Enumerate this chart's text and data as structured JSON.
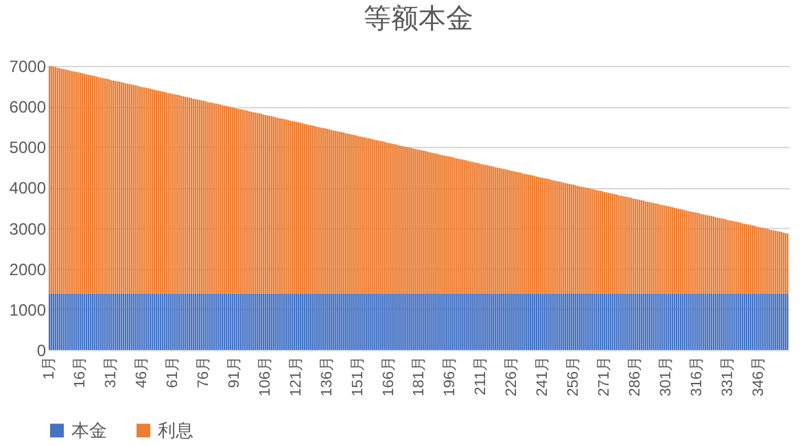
{
  "chart_data": {
    "type": "bar",
    "title": "等额本金",
    "stacked": true,
    "legend": "bottom",
    "grid": "y",
    "ylim": [
      0,
      7000
    ],
    "yticks": [
      0,
      1000,
      2000,
      3000,
      4000,
      5000,
      6000,
      7000
    ],
    "categories": [
      "1月",
      null,
      null,
      null,
      null,
      null,
      null,
      null,
      null,
      null,
      null,
      null,
      null,
      null,
      null,
      "16月",
      null,
      null,
      null,
      null,
      null,
      null,
      null,
      null,
      null,
      null,
      null,
      null,
      null,
      null,
      "31月",
      null,
      null,
      null,
      null,
      null,
      null,
      null,
      null,
      null,
      null,
      null,
      null,
      null,
      null,
      "46月",
      null,
      null,
      null,
      null,
      null,
      null,
      null,
      null,
      null,
      null,
      null,
      null,
      null,
      null,
      "61月",
      null,
      null,
      null,
      null,
      null,
      null,
      null,
      null,
      null,
      null,
      null,
      null,
      null,
      null,
      "76月",
      null,
      null,
      null,
      null,
      null,
      null,
      null,
      null,
      null,
      null,
      null,
      null,
      null,
      null,
      "91月",
      null,
      null,
      null,
      null,
      null,
      null,
      null,
      null,
      null,
      null,
      null,
      null,
      null,
      null,
      "106月",
      null,
      null,
      null,
      null,
      null,
      null,
      null,
      null,
      null,
      null,
      null,
      null,
      null,
      null,
      "121月",
      null,
      null,
      null,
      null,
      null,
      null,
      null,
      null,
      null,
      null,
      null,
      null,
      null,
      null,
      "136月",
      null,
      null,
      null,
      null,
      null,
      null,
      null,
      null,
      null,
      null,
      null,
      null,
      null,
      null,
      "151月",
      null,
      null,
      null,
      null,
      null,
      null,
      null,
      null,
      null,
      null,
      null,
      null,
      null,
      null,
      "166月",
      null,
      null,
      null,
      null,
      null,
      null,
      null,
      null,
      null,
      null,
      null,
      null,
      null,
      null,
      "181月",
      null,
      null,
      null,
      null,
      null,
      null,
      null,
      null,
      null,
      null,
      null,
      null,
      null,
      null,
      "196月",
      null,
      null,
      null,
      null,
      null,
      null,
      null,
      null,
      null,
      null,
      null,
      null,
      null,
      null,
      "211月",
      null,
      null,
      null,
      null,
      null,
      null,
      null,
      null,
      null,
      null,
      null,
      null,
      null,
      null,
      "226月",
      null,
      null,
      null,
      null,
      null,
      null,
      null,
      null,
      null,
      null,
      null,
      null,
      null,
      null,
      "241月",
      null,
      null,
      null,
      null,
      null,
      null,
      null,
      null,
      null,
      null,
      null,
      null,
      null,
      null,
      "256月",
      null,
      null,
      null,
      null,
      null,
      null,
      null,
      null,
      null,
      null,
      null,
      null,
      null,
      null,
      "271月",
      null,
      null,
      null,
      null,
      null,
      null,
      null,
      null,
      null,
      null,
      null,
      null,
      null,
      null,
      "286月",
      null,
      null,
      null,
      null,
      null,
      null,
      null,
      null,
      null,
      null,
      null,
      null,
      null,
      null,
      "301月",
      null,
      null,
      null,
      null,
      null,
      null,
      null,
      null,
      null,
      null,
      null,
      null,
      null,
      null,
      "316月",
      null,
      null,
      null,
      null,
      null,
      null,
      null,
      null,
      null,
      null,
      null,
      null,
      null,
      null,
      "331月",
      null,
      null,
      null,
      null,
      null,
      null,
      null,
      null,
      null,
      null,
      null,
      null,
      null,
      null,
      "346月",
      null,
      null,
      null,
      null,
      null,
      null,
      null,
      null,
      null,
      null,
      null,
      null,
      null,
      null
    ],
    "series": [
      {
        "name": "本金",
        "color": "#4472c4",
        "values": [
          1390,
          1390,
          1390,
          1390,
          1390,
          1390,
          1390,
          1390,
          1390,
          1390,
          1390,
          1390,
          1390,
          1390,
          1390,
          1390,
          1390,
          1390,
          1390,
          1390,
          1390,
          1390,
          1390,
          1390,
          1390,
          1390,
          1390,
          1390,
          1390,
          1390,
          1390,
          1390,
          1390,
          1390,
          1390,
          1390,
          1390,
          1390,
          1390,
          1390,
          1390,
          1390,
          1390,
          1390,
          1390,
          1390,
          1390,
          1390,
          1390,
          1390,
          1390,
          1390,
          1390,
          1390,
          1390,
          1390,
          1390,
          1390,
          1390,
          1390,
          1390,
          1390,
          1390,
          1390,
          1390,
          1390,
          1390,
          1390,
          1390,
          1390,
          1390,
          1390,
          1390,
          1390,
          1390,
          1390,
          1390,
          1390,
          1390,
          1390,
          1390,
          1390,
          1390,
          1390,
          1390,
          1390,
          1390,
          1390,
          1390,
          1390,
          1390,
          1390,
          1390,
          1390,
          1390,
          1390,
          1390,
          1390,
          1390,
          1390,
          1390,
          1390,
          1390,
          1390,
          1390,
          1390,
          1390,
          1390,
          1390,
          1390,
          1390,
          1390,
          1390,
          1390,
          1390,
          1390,
          1390,
          1390,
          1390,
          1390,
          1390,
          1390,
          1390,
          1390,
          1390,
          1390,
          1390,
          1390,
          1390,
          1390,
          1390,
          1390,
          1390,
          1390,
          1390,
          1390,
          1390,
          1390,
          1390,
          1390,
          1390,
          1390,
          1390,
          1390,
          1390,
          1390,
          1390,
          1390,
          1390,
          1390,
          1390,
          1390,
          1390,
          1390,
          1390,
          1390,
          1390,
          1390,
          1390,
          1390,
          1390,
          1390,
          1390,
          1390,
          1390,
          1390,
          1390,
          1390,
          1390,
          1390,
          1390,
          1390,
          1390,
          1390,
          1390,
          1390,
          1390,
          1390,
          1390,
          1390,
          1390,
          1390,
          1390,
          1390,
          1390,
          1390,
          1390,
          1390,
          1390,
          1390,
          1390,
          1390,
          1390,
          1390,
          1390,
          1390,
          1390,
          1390,
          1390,
          1390,
          1390,
          1390,
          1390,
          1390,
          1390,
          1390,
          1390,
          1390,
          1390,
          1390,
          1390,
          1390,
          1390,
          1390,
          1390,
          1390,
          1390,
          1390,
          1390,
          1390,
          1390,
          1390,
          1390,
          1390,
          1390,
          1390,
          1390,
          1390,
          1390,
          1390,
          1390,
          1390,
          1390,
          1390,
          1390,
          1390,
          1390,
          1390,
          1390,
          1390,
          1390,
          1390,
          1390,
          1390,
          1390,
          1390,
          1390,
          1390,
          1390,
          1390,
          1390,
          1390,
          1390,
          1390,
          1390,
          1390,
          1390,
          1390,
          1390,
          1390,
          1390,
          1390,
          1390,
          1390,
          1390,
          1390,
          1390,
          1390,
          1390,
          1390,
          1390,
          1390,
          1390,
          1390,
          1390,
          1390,
          1390,
          1390,
          1390,
          1390,
          1390,
          1390,
          1390,
          1390,
          1390,
          1390,
          1390,
          1390,
          1390,
          1390,
          1390,
          1390,
          1390,
          1390,
          1390,
          1390,
          1390,
          1390,
          1390,
          1390,
          1390,
          1390,
          1390,
          1390,
          1390,
          1390,
          1390,
          1390,
          1390,
          1390,
          1390,
          1390,
          1390,
          1390,
          1390,
          1390,
          1390,
          1390,
          1390,
          1390,
          1390,
          1390,
          1390,
          1390,
          1390,
          1390,
          1390,
          1390,
          1390,
          1390,
          1390,
          1390,
          1390,
          1390,
          1390,
          1390,
          1390,
          1390,
          1390,
          1390,
          1390,
          1390,
          1390,
          1390,
          1390,
          1390,
          1390,
          1390,
          1390,
          1390,
          1390,
          1390,
          1390,
          1390,
          1390,
          1390,
          1390,
          1390,
          1390,
          1390
        ]
      },
      {
        "name": "利息",
        "color": "#ed7d31",
        "values": [
          5610,
          5600,
          5590,
          5580,
          5560,
          5550,
          5540,
          5530,
          5520,
          5510,
          5490,
          5480,
          5470,
          5460,
          5450,
          5440,
          5430,
          5410,
          5400,
          5390,
          5380,
          5370,
          5360,
          5350,
          5330,
          5320,
          5310,
          5300,
          5290,
          5280,
          5260,
          5250,
          5240,
          5230,
          5220,
          5210,
          5200,
          5180,
          5170,
          5160,
          5150,
          5140,
          5130,
          5120,
          5100,
          5090,
          5080,
          5070,
          5060,
          5050,
          5030,
          5020,
          5010,
          5000,
          4990,
          4980,
          4970,
          4950,
          4940,
          4930,
          4920,
          4910,
          4900,
          4890,
          4870,
          4860,
          4850,
          4840,
          4830,
          4820,
          4800,
          4790,
          4780,
          4770,
          4760,
          4750,
          4740,
          4720,
          4710,
          4700,
          4690,
          4680,
          4670,
          4660,
          4640,
          4630,
          4620,
          4610,
          4600,
          4590,
          4570,
          4560,
          4550,
          4540,
          4530,
          4520,
          4510,
          4490,
          4480,
          4470,
          4460,
          4450,
          4440,
          4430,
          4410,
          4400,
          4390,
          4380,
          4370,
          4360,
          4340,
          4330,
          4320,
          4310,
          4300,
          4290,
          4280,
          4260,
          4250,
          4240,
          4230,
          4220,
          4210,
          4200,
          4180,
          4170,
          4160,
          4150,
          4140,
          4130,
          4110,
          4100,
          4090,
          4080,
          4070,
          4060,
          4050,
          4030,
          4020,
          4010,
          4000,
          3990,
          3980,
          3970,
          3950,
          3940,
          3930,
          3920,
          3910,
          3900,
          3880,
          3870,
          3860,
          3850,
          3840,
          3830,
          3820,
          3800,
          3790,
          3780,
          3770,
          3760,
          3750,
          3740,
          3720,
          3710,
          3700,
          3690,
          3680,
          3670,
          3650,
          3640,
          3630,
          3620,
          3610,
          3600,
          3590,
          3570,
          3560,
          3550,
          3540,
          3530,
          3520,
          3510,
          3490,
          3480,
          3470,
          3460,
          3450,
          3440,
          3420,
          3410,
          3400,
          3390,
          3380,
          3370,
          3360,
          3340,
          3330,
          3320,
          3310,
          3300,
          3290,
          3280,
          3260,
          3250,
          3240,
          3230,
          3220,
          3210,
          3190,
          3180,
          3170,
          3160,
          3150,
          3140,
          3130,
          3110,
          3100,
          3090,
          3080,
          3070,
          3060,
          3050,
          3030,
          3020,
          3010,
          3000,
          2990,
          2980,
          2960,
          2950,
          2940,
          2930,
          2920,
          2910,
          2900,
          2880,
          2870,
          2860,
          2850,
          2840,
          2830,
          2820,
          2800,
          2790,
          2780,
          2770,
          2760,
          2750,
          2730,
          2720,
          2710,
          2700,
          2690,
          2680,
          2670,
          2650,
          2640,
          2630,
          2620,
          2610,
          2600,
          2590,
          2570,
          2560,
          2550,
          2540,
          2530,
          2520,
          2500,
          2490,
          2480,
          2470,
          2460,
          2450,
          2440,
          2420,
          2410,
          2400,
          2390,
          2380,
          2370,
          2360,
          2340,
          2330,
          2320,
          2310,
          2300,
          2290,
          2270,
          2260,
          2250,
          2240,
          2230,
          2220,
          2210,
          2190,
          2180,
          2170,
          2160,
          2150,
          2140,
          2130,
          2110,
          2100,
          2090,
          2080,
          2070,
          2060,
          2040,
          2030,
          2020,
          2010,
          2000,
          1990,
          1980,
          1960,
          1950,
          1940,
          1930,
          1920,
          1910,
          1900,
          1880,
          1870,
          1860,
          1850,
          1840,
          1830,
          1810,
          1800,
          1790,
          1780,
          1770,
          1760,
          1750,
          1730,
          1720,
          1710,
          1700,
          1690,
          1680,
          1670,
          1650,
          1640,
          1630,
          1620,
          1610,
          1600,
          1580,
          1570,
          1560,
          1550,
          1540,
          1530,
          1520,
          1500,
          1490,
          1480
        ]
      }
    ]
  }
}
